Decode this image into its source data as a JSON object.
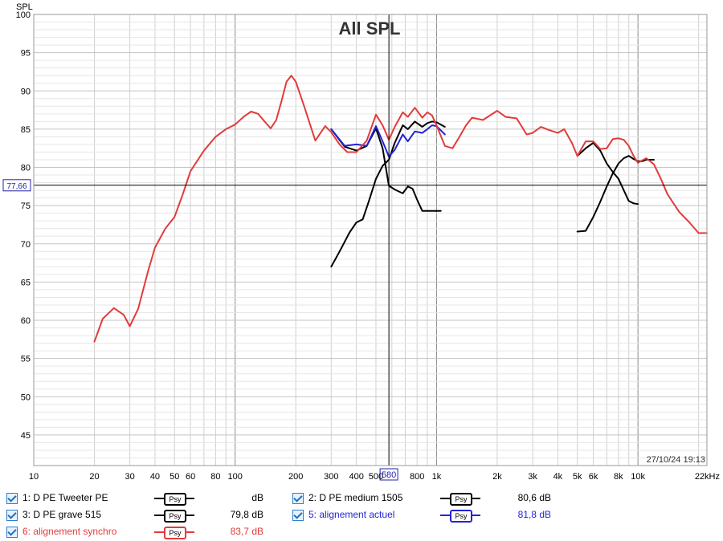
{
  "chart_data": {
    "type": "line",
    "title": "All SPL",
    "ylabel": "SPL",
    "xscale": "log",
    "xlim": [
      10,
      22000
    ],
    "ylim": [
      41,
      100
    ],
    "grid": true,
    "y_ticks": [
      "45",
      "50",
      "55",
      "60",
      "65",
      "70",
      "75",
      "80",
      "85",
      "90",
      "95",
      "100"
    ],
    "x_ticks": [
      "10",
      "20",
      "30",
      "40",
      "50",
      "60",
      "80",
      "100",
      "200",
      "300",
      "400",
      "500",
      "800",
      "1k",
      "2k",
      "3k",
      "4k",
      "5k",
      "6k",
      "8k",
      "10k",
      "22kHz"
    ],
    "cursor": {
      "x": 580,
      "y": 77.66,
      "x_label": "580",
      "y_label": "77,66"
    },
    "timestamp": "27/10/24 19:13",
    "series": [
      {
        "name": "1: D PE Tweeter PE",
        "color": "#000000",
        "x": [
          5000,
          5500,
          6000,
          6500,
          7000,
          7500,
          8000,
          8500,
          9000,
          9500,
          10000,
          10500,
          11000,
          12000
        ],
        "y": [
          71.6,
          71.7,
          73.5,
          75.5,
          77.5,
          79.2,
          80.5,
          81.2,
          81.5,
          81.1,
          80.8,
          80.8,
          81.0,
          81.0
        ]
      },
      {
        "name": "2: D PE medium 1505",
        "color": "#000000",
        "x": [
          300,
          330,
          370,
          400,
          430,
          460,
          500,
          540,
          580,
          620,
          680,
          720,
          780,
          850,
          900,
          950,
          1000,
          1050,
          1100
        ],
        "y": [
          67,
          69,
          71.5,
          72.8,
          73.2,
          75.5,
          78.5,
          80.2,
          81,
          83.2,
          85.5,
          85,
          86,
          85.3,
          85.8,
          86,
          85.9,
          85.6,
          85.3
        ]
      },
      {
        "name": "3: D PE grave 515",
        "color": "#000000",
        "x": [
          300,
          350,
          400,
          450,
          500,
          540,
          580,
          620,
          680,
          720,
          760,
          800,
          850,
          900,
          1000,
          1050
        ],
        "y": [
          85,
          82.7,
          82.2,
          82.8,
          85.1,
          82.5,
          77.6,
          77.1,
          76.6,
          77.5,
          77.2,
          75.8,
          74.3,
          74.3,
          74.3,
          74.3
        ]
      },
      {
        "name": "",
        "color": "#000000",
        "x": [
          5000,
          5500,
          6000,
          6500,
          7000,
          7500,
          8000,
          8500,
          9000,
          9500,
          10000
        ],
        "y": [
          81.5,
          82.5,
          83.2,
          82.2,
          80.5,
          79.4,
          78.5,
          77,
          75.6,
          75.3,
          75.2
        ]
      },
      {
        "name": "5: alignement actuel",
        "color": "#2323d8",
        "x": [
          300,
          350,
          400,
          450,
          500,
          540,
          580,
          620,
          680,
          720,
          780,
          850,
          900,
          950,
          1000,
          1100
        ],
        "y": [
          85,
          82.8,
          83,
          82.8,
          85.4,
          83.4,
          81.4,
          82.3,
          84.3,
          83.4,
          84.7,
          84.5,
          85,
          85.5,
          85.4,
          84.3
        ]
      },
      {
        "name": "6: alignement synchro",
        "color": "#e23b3b",
        "x": [
          20,
          22,
          25,
          28,
          30,
          33,
          37,
          40,
          45,
          50,
          55,
          60,
          70,
          80,
          90,
          100,
          110,
          120,
          130,
          140,
          150,
          160,
          170,
          180,
          190,
          200,
          220,
          250,
          280,
          300,
          330,
          360,
          400,
          450,
          500,
          540,
          580,
          620,
          680,
          720,
          780,
          850,
          900,
          950,
          1000,
          1100,
          1200,
          1300,
          1400,
          1500,
          1700,
          2000,
          2200,
          2500,
          2800,
          3000,
          3300,
          3600,
          4000,
          4300,
          4700,
          5000,
          5500,
          6000,
          6500,
          7000,
          7500,
          8000,
          8500,
          9000,
          9500,
          10000,
          11000,
          12000,
          13000,
          14000,
          16000,
          18000,
          20000,
          22000
        ],
        "y": [
          57.2,
          60.2,
          61.6,
          60.7,
          59.2,
          61.5,
          66.5,
          69.5,
          72,
          73.5,
          76.5,
          79.5,
          82.2,
          84,
          85,
          85.6,
          86.6,
          87.3,
          87,
          86,
          85.1,
          86.2,
          88.7,
          91.2,
          92,
          91.2,
          88,
          83.5,
          85.4,
          84.6,
          83,
          82,
          82,
          83.5,
          86.9,
          85.5,
          83.6,
          85.3,
          87.2,
          86.6,
          87.8,
          86.5,
          87.2,
          86.8,
          85.5,
          82.8,
          82.5,
          84,
          85.5,
          86.5,
          86.2,
          87.4,
          86.6,
          86.4,
          84.3,
          84.5,
          85.3,
          84.9,
          84.5,
          85,
          83.2,
          81.5,
          83.4,
          83.4,
          82.4,
          82.5,
          83.7,
          83.8,
          83.6,
          82.8,
          81.5,
          80.6,
          81.2,
          80.4,
          78.5,
          76.5,
          74.2,
          72.8,
          71.4,
          71.4
        ]
      }
    ]
  },
  "legend": [
    {
      "label": "1: D PE Tweeter PE",
      "psy": "Psy",
      "value": "dB",
      "color": "#000000",
      "label_color": "#000000"
    },
    {
      "label": "2: D PE medium 1505",
      "psy": "Psy",
      "value": "80,6 dB",
      "color": "#000000",
      "label_color": "#000000"
    },
    {
      "label": "3: D PE grave 515",
      "psy": "Psy",
      "value": "79,8 dB",
      "color": "#000000",
      "label_color": "#000000"
    },
    {
      "label": "5: alignement actuel",
      "psy": "Psy",
      "value": "81,8 dB",
      "color": "#2323d8",
      "label_color": "#2323d8"
    },
    {
      "label": "6: alignement synchro",
      "psy": "Psy",
      "value": "83,7 dB",
      "color": "#e23b3b",
      "label_color": "#e23b3b"
    }
  ]
}
